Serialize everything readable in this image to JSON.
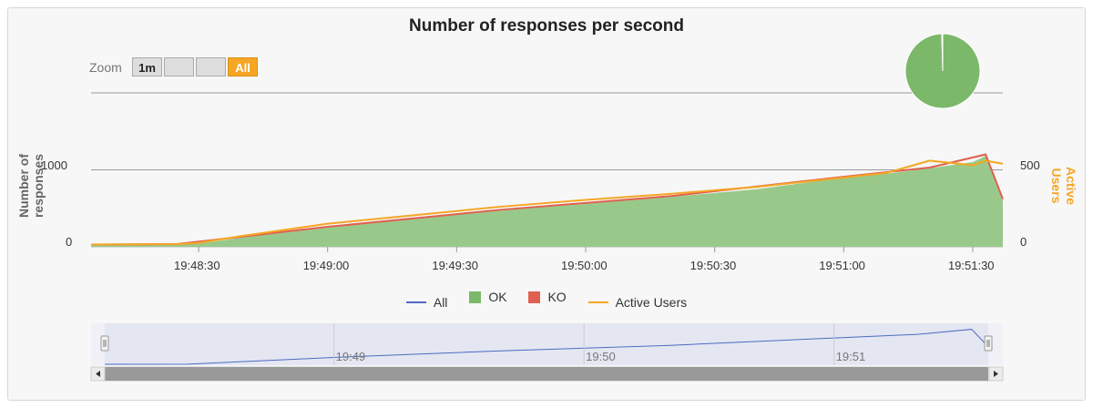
{
  "chart_data": {
    "type": "area",
    "title": "Number of responses per second",
    "ylabel": "Number of responses",
    "y2label": "Active Users",
    "ylim": [
      0,
      2000
    ],
    "y2lim": [
      0,
      1000
    ],
    "y_ticks": [
      "0",
      "1000"
    ],
    "y2_ticks": [
      "0",
      "500"
    ],
    "x_range": [
      "19:48:05",
      "19:51:37"
    ],
    "x_ticks": [
      "19:48:30",
      "19:49:00",
      "19:49:30",
      "19:50:00",
      "19:50:30",
      "19:51:00",
      "19:51:30"
    ],
    "grid": true,
    "legend_position": "bottom",
    "legend": [
      "All",
      "OK",
      "KO",
      "Active Users"
    ],
    "series": [
      {
        "name": "OK",
        "color": "#7cb86a",
        "x": [
          "19:48:05",
          "19:48:15",
          "19:48:25",
          "19:48:30",
          "19:48:40",
          "19:49:00",
          "19:49:20",
          "19:49:40",
          "19:50:00",
          "19:50:20",
          "19:50:40",
          "19:51:00",
          "19:51:10",
          "19:51:20",
          "19:51:30",
          "19:51:33",
          "19:51:37"
        ],
        "values": [
          20,
          22,
          30,
          40,
          120,
          250,
          370,
          470,
          560,
          650,
          750,
          900,
          950,
          1020,
          1100,
          1180,
          600
        ]
      },
      {
        "name": "KO",
        "color": "#e0604f",
        "x": [
          "19:48:05",
          "19:48:25",
          "19:49:00",
          "19:49:40",
          "19:50:20",
          "19:51:00",
          "19:51:20",
          "19:51:33",
          "19:51:37"
        ],
        "values": [
          30,
          35,
          260,
          480,
          660,
          910,
          1030,
          1200,
          620
        ]
      },
      {
        "name": "Active Users",
        "color": "#f5a623",
        "x": [
          "19:48:05",
          "19:48:25",
          "19:48:30",
          "19:48:40",
          "19:49:00",
          "19:49:20",
          "19:49:40",
          "19:50:00",
          "19:50:20",
          "19:50:40",
          "19:51:00",
          "19:51:10",
          "19:51:20",
          "19:51:30",
          "19:51:33",
          "19:51:37"
        ],
        "values": [
          15,
          17,
          25,
          70,
          150,
          205,
          260,
          305,
          345,
          390,
          450,
          480,
          560,
          530,
          560,
          540
        ]
      },
      {
        "name": "All",
        "color": "#4b6cc1",
        "x": [
          "19:48:05",
          "19:48:25",
          "19:49:00",
          "19:49:40",
          "19:50:20",
          "19:51:00",
          "19:51:20",
          "19:51:33",
          "19:51:37"
        ],
        "values": [
          30,
          35,
          260,
          480,
          660,
          910,
          1030,
          1200,
          620
        ]
      }
    ],
    "pie": [
      {
        "name": "OK",
        "value": 99.6,
        "color": "#7cb86a"
      },
      {
        "name": "KO",
        "value": 0.4,
        "color": "#e0604f"
      }
    ],
    "navigator_ticks": [
      "19:49",
      "19:50",
      "19:51"
    ]
  },
  "zoom": {
    "label": "Zoom",
    "buttons": [
      "1m",
      "",
      "",
      "All"
    ],
    "active": "All"
  }
}
